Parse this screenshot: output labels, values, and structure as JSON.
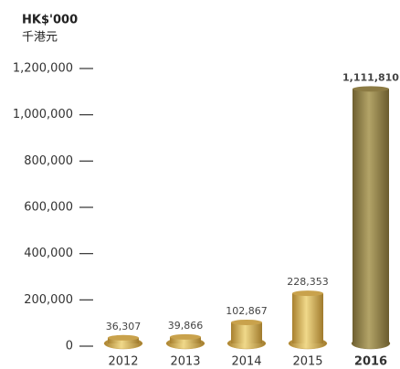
{
  "chart_data": {
    "type": "bar",
    "title": "HK$'000",
    "subtitle": "千港元",
    "categories": [
      "2012",
      "2013",
      "2014",
      "2015",
      "2016"
    ],
    "values": [
      36307,
      39866,
      102867,
      228353,
      1111810
    ],
    "value_labels": [
      "36,307",
      "39,866",
      "102,867",
      "228,353",
      "1,111,810"
    ],
    "colors": [
      "#c9a24c",
      "#c9a24c",
      "#c9a24c",
      "#c9a24c",
      "#8c7b44"
    ],
    "ylim": [
      0,
      1200000
    ],
    "yticks": [
      {
        "value": 0,
        "label": "0"
      },
      {
        "value": 200000,
        "label": "200,000"
      },
      {
        "value": 400000,
        "label": "400,000"
      },
      {
        "value": 600000,
        "label": "600,000"
      },
      {
        "value": 800000,
        "label": "800,000"
      },
      {
        "value": 1000000,
        "label": "1,000,000"
      },
      {
        "value": 1200000,
        "label": "1,200,000"
      }
    ]
  }
}
